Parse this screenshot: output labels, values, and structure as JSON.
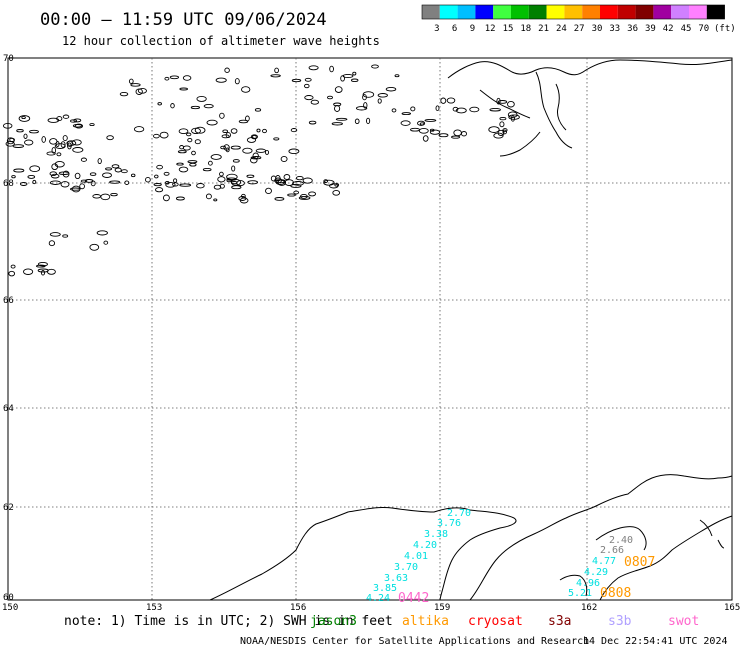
{
  "header": {
    "title": "00:00 – 11:59 UTC 09/06/2024",
    "subtitle": "12 hour collection of altimeter wave heights"
  },
  "color_scale": {
    "labels": [
      "3",
      "6",
      "9",
      "12",
      "15",
      "18",
      "21",
      "24",
      "27",
      "30",
      "33",
      "36",
      "39",
      "42",
      "45",
      "70"
    ],
    "unit": "(ft)",
    "colors": [
      "#808080",
      "#00ffff",
      "#00bfff",
      "#0000ff",
      "#40ff40",
      "#00c000",
      "#008000",
      "#ffff00",
      "#ffc000",
      "#ff8000",
      "#ff0000",
      "#c00000",
      "#800000",
      "#a000a0",
      "#d080ff",
      "#ff80ff",
      "#000000"
    ]
  },
  "map": {
    "lat_labels": [
      "70",
      "68",
      "66",
      "64",
      "62",
      "60"
    ],
    "lon_labels": [
      "150",
      "153",
      "156",
      "159",
      "162",
      "165"
    ],
    "swh_labels": [
      {
        "text": "2.70",
        "color": "#00e0e0"
      },
      {
        "text": "3.76",
        "color": "#00e0e0"
      },
      {
        "text": "3.38",
        "color": "#00e0e0"
      },
      {
        "text": "4.20",
        "color": "#00e0e0"
      },
      {
        "text": "4.01",
        "color": "#00e0e0"
      },
      {
        "text": "3.70",
        "color": "#00e0e0"
      },
      {
        "text": "3.63",
        "color": "#00e0e0"
      },
      {
        "text": "3.85",
        "color": "#00e0e0"
      },
      {
        "text": "4.24",
        "color": "#00e0e0"
      },
      {
        "text": "2.40",
        "color": "#808080"
      },
      {
        "text": "2.66",
        "color": "#808080"
      },
      {
        "text": "4.77",
        "color": "#00e0e0"
      },
      {
        "text": "4.29",
        "color": "#00e0e0"
      },
      {
        "text": "4.96",
        "color": "#00e0e0"
      },
      {
        "text": "5.21",
        "color": "#00e0e0"
      }
    ],
    "track_ids": [
      {
        "text": "0442",
        "color": "#ff66cc"
      },
      {
        "text": "0807",
        "color": "#ff9900"
      },
      {
        "text": "0808",
        "color": "#ff9900"
      }
    ]
  },
  "legend": {
    "note": "note: 1) Time is in UTC; 2) SWH is in feet",
    "satellites": [
      {
        "name": "jason3",
        "color": "#008000"
      },
      {
        "name": "altika",
        "color": "#ff9900"
      },
      {
        "name": "cryosat",
        "color": "#ff0000"
      },
      {
        "name": "s3a",
        "color": "#800000"
      },
      {
        "name": "s3b",
        "color": "#b0a0ff"
      },
      {
        "name": "swot",
        "color": "#ff66cc"
      }
    ]
  },
  "footer": {
    "credit": "NOAA/NESDIS Center for Satellite Applications and Research",
    "timestamp": "14 Dec 22:54:41 UTC 2024"
  }
}
